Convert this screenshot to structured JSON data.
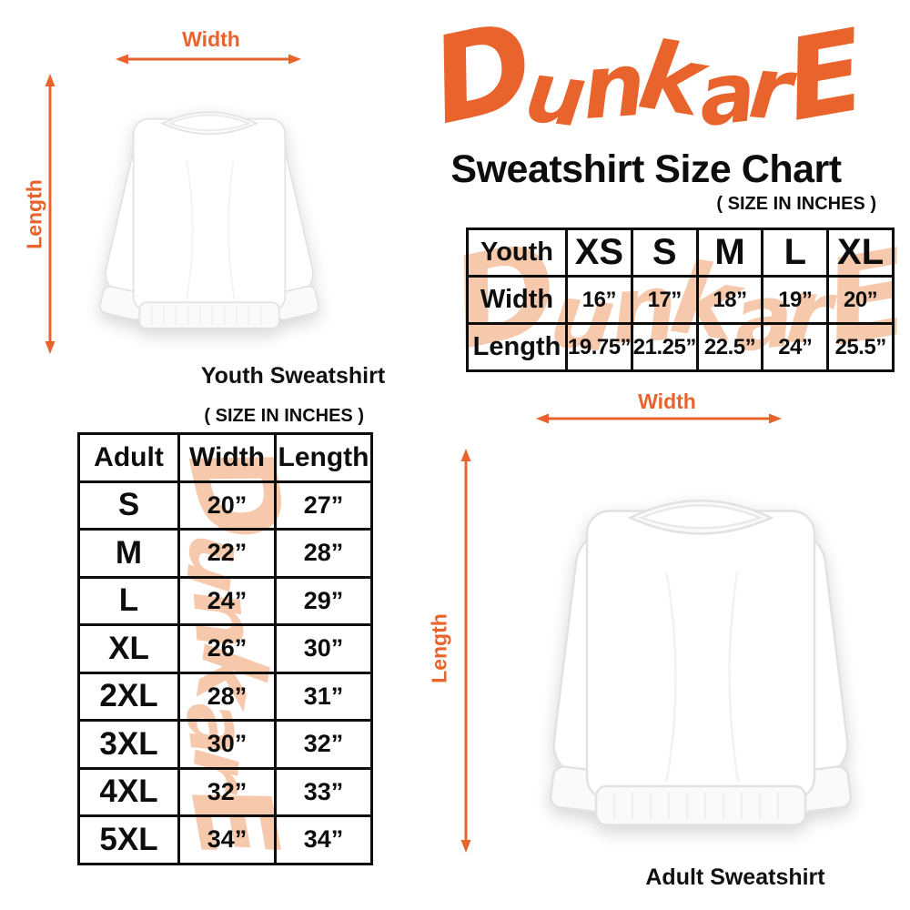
{
  "brand": {
    "logo_text": "DunkarE",
    "orange": "#E8642C",
    "watermark_color": "#F6C9AC"
  },
  "header": {
    "title": "Sweatshirt Size Chart",
    "size_note": "( SIZE IN INCHES )"
  },
  "youth_section": {
    "width_label": "Width",
    "length_label": "Length",
    "caption": "Youth Sweatshirt",
    "table": {
      "header": [
        "Youth",
        "XS",
        "S",
        "M",
        "L",
        "XL"
      ],
      "rows": [
        [
          "Width",
          "16”",
          "17”",
          "18”",
          "19”",
          "20”"
        ],
        [
          "Length",
          "19.75”",
          "21.25”",
          "22.5”",
          "24”",
          "25.5”"
        ]
      ]
    }
  },
  "adult_section": {
    "size_note": "( SIZE IN INCHES )",
    "width_label": "Width",
    "length_label": "Length",
    "caption": "Adult Sweatshirt",
    "table": {
      "header": [
        "Adult",
        "Width",
        "Length"
      ],
      "rows": [
        [
          "S",
          "20”",
          "27”"
        ],
        [
          "M",
          "22”",
          "28”"
        ],
        [
          "L",
          "24”",
          "29”"
        ],
        [
          "XL",
          "26”",
          "30”"
        ],
        [
          "2XL",
          "28”",
          "31”"
        ],
        [
          "3XL",
          "30”",
          "32”"
        ],
        [
          "4XL",
          "32”",
          "33”"
        ],
        [
          "5XL",
          "34”",
          "34”"
        ]
      ]
    }
  }
}
